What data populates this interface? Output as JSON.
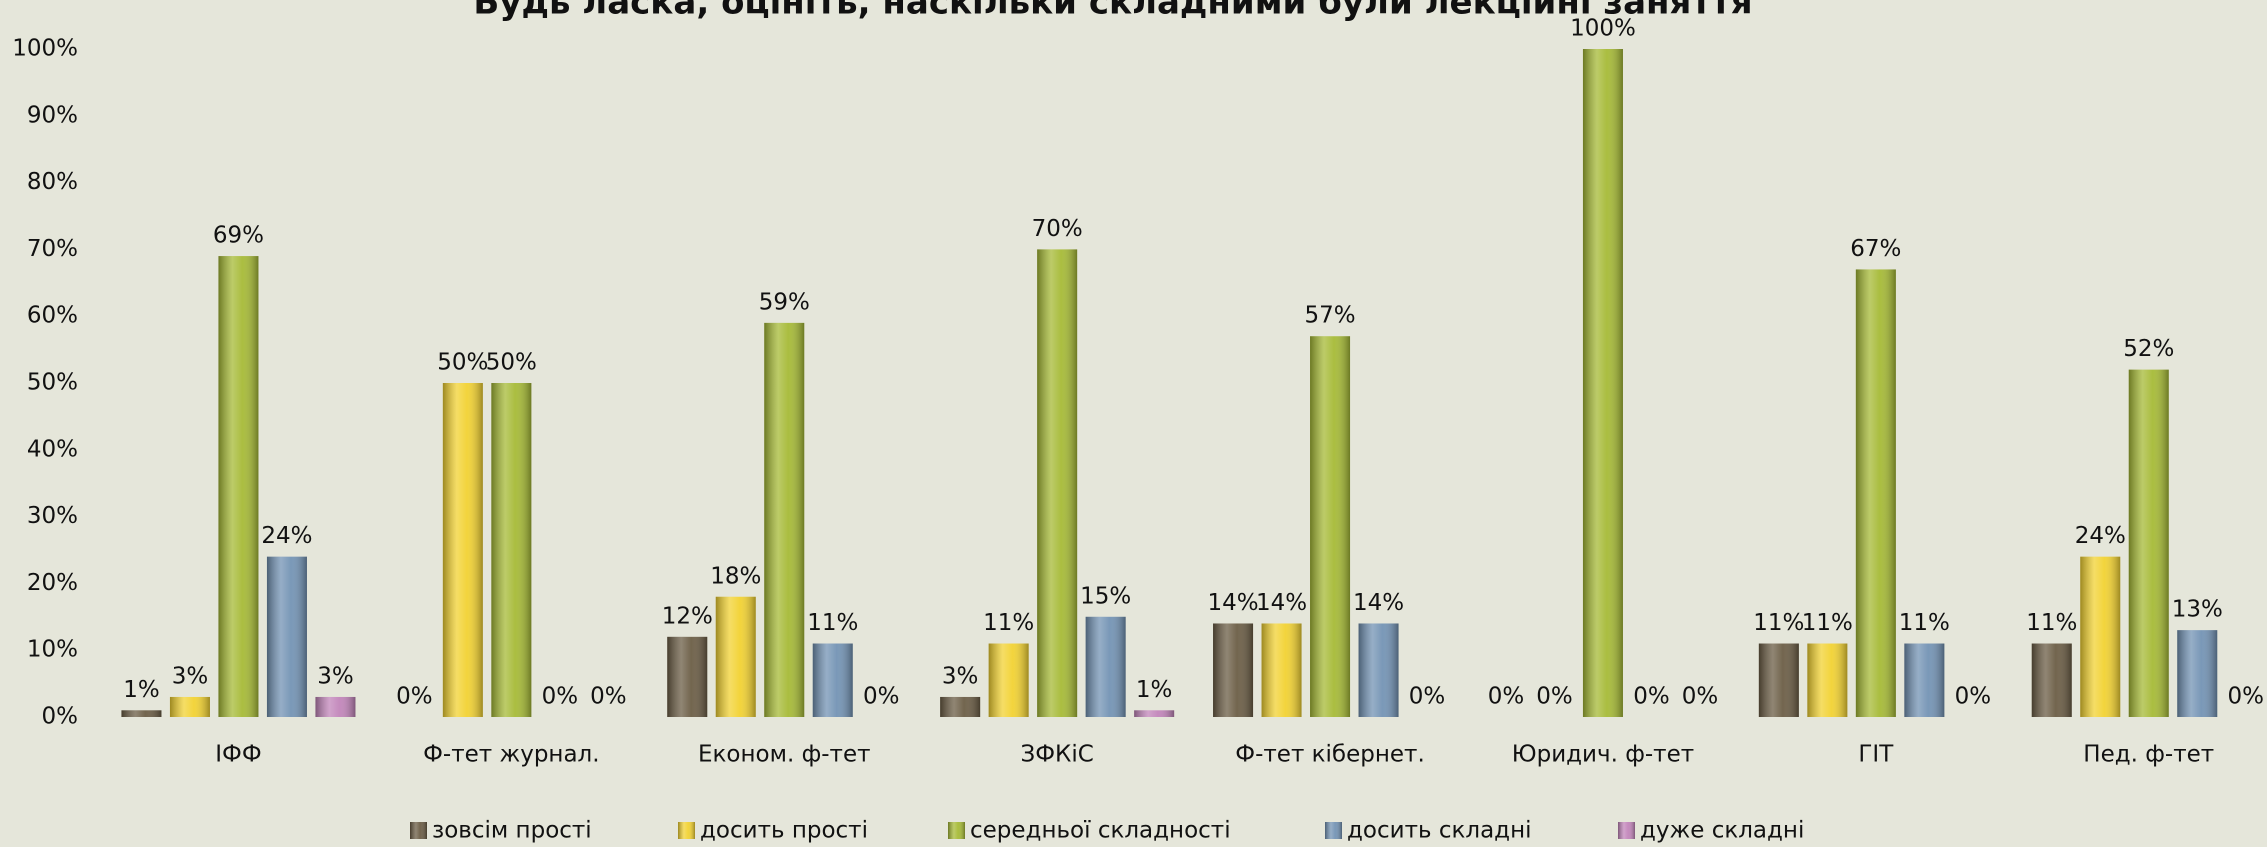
{
  "chart_data": {
    "type": "bar",
    "title": "Будь ласка, оцініть, наскільки складними були лекційні заняття",
    "categories": [
      "ІФФ",
      "Ф-тет журнал.",
      "Економ. ф-тет",
      "ЗФКіС",
      "Ф-тет кібернет.",
      "Юридич. ф-тет",
      "ГІТ",
      "Пед. ф-тет"
    ],
    "series": [
      {
        "name": "зовсім прості",
        "color": "#6b5d45",
        "values": [
          1,
          0,
          12,
          3,
          14,
          0,
          11,
          11
        ],
        "value_labels": [
          "1%",
          "0%",
          "12%",
          "3%",
          "14%",
          "0%",
          "11%",
          "11%"
        ]
      },
      {
        "name": "досить прості",
        "color": "#f2d232",
        "values": [
          3,
          50,
          18,
          11,
          14,
          0,
          11,
          24
        ],
        "value_labels": [
          "3%",
          "50%",
          "18%",
          "11%",
          "14%",
          "0%",
          "11%",
          "24%"
        ]
      },
      {
        "name": "середньої складності",
        "color": "#a6ba36",
        "values": [
          69,
          50,
          59,
          70,
          57,
          100,
          67,
          52
        ],
        "value_labels": [
          "69%",
          "50%",
          "59%",
          "70%",
          "57%",
          "100%",
          "67%",
          "52%"
        ]
      },
      {
        "name": "досить складні",
        "color": "#7393b4",
        "values": [
          24,
          0,
          11,
          15,
          14,
          0,
          11,
          13
        ],
        "value_labels": [
          "24%",
          "0%",
          "11%",
          "15%",
          "14%",
          "0%",
          "11%",
          "13%"
        ]
      },
      {
        "name": "дуже складні",
        "color": "#c285ba",
        "values": [
          3,
          0,
          0,
          1,
          0,
          0,
          0,
          0
        ],
        "value_labels": [
          "3%",
          "0%",
          "0%",
          "1%",
          "0%",
          "0%",
          "0%",
          "0%"
        ]
      }
    ],
    "ylim": [
      0,
      100
    ],
    "yticks": [
      {
        "value": 0,
        "label": "0%"
      },
      {
        "value": 10,
        "label": "10%"
      },
      {
        "value": 20,
        "label": "20%"
      },
      {
        "value": 30,
        "label": "30%"
      },
      {
        "value": 40,
        "label": "40%"
      },
      {
        "value": 50,
        "label": "50%"
      },
      {
        "value": 60,
        "label": "60%"
      },
      {
        "value": 70,
        "label": "70%"
      },
      {
        "value": 80,
        "label": "80%"
      },
      {
        "value": 90,
        "label": "90%"
      },
      {
        "value": 100,
        "label": "100%"
      }
    ],
    "grid": false,
    "legend": "bottom"
  }
}
